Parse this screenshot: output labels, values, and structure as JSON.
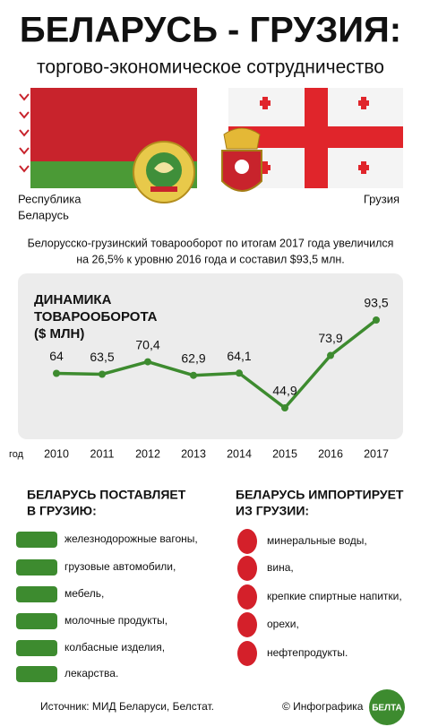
{
  "header": {
    "title": "БЕЛАРУСЬ - ГРУЗИЯ:",
    "subtitle": "торгово-экономическое сотрудничество"
  },
  "flags": {
    "left_label": [
      "Республика",
      "Беларусь"
    ],
    "right_label": "Грузия"
  },
  "summary": [
    "Белорусско-грузинский товарооборот по итогам 2017 года увеличился",
    "на 26,5% к уровню 2016 года и составил $93,5 млн."
  ],
  "chart_data": {
    "type": "line",
    "title": [
      "ДИНАМИКА",
      "ТОВАРООБОРОТА",
      "($ МЛН)"
    ],
    "x_label": "год",
    "categories": [
      "2010",
      "2011",
      "2012",
      "2013",
      "2014",
      "2015",
      "2016",
      "2017"
    ],
    "values": [
      64,
      63.5,
      70.4,
      62.9,
      64.1,
      44.9,
      73.9,
      93.5
    ],
    "value_labels": [
      "64",
      "63,5",
      "70,4",
      "62,9",
      "64,1",
      "44,9",
      "73,9",
      "93,5"
    ],
    "color": "#3d8b2f"
  },
  "exports": {
    "title": [
      "БЕЛАРУСЬ ПОСТАВЛЯЕТ",
      "В ГРУЗИЮ:"
    ],
    "items": [
      "железнодорожные вагоны,",
      "грузовые автомобили,",
      "мебель,",
      "молочные продукты,",
      "колбасные изделия,",
      "лекарства."
    ]
  },
  "imports": {
    "title": [
      "БЕЛАРУСЬ ИМПОРТИРУЕТ",
      "ИЗ ГРУЗИИ:"
    ],
    "items": [
      "минеральные воды,",
      "вина,",
      "крепкие спиртные напитки,",
      "орехи,",
      "нефтепродукты."
    ]
  },
  "footer": {
    "source": "Источник: МИД Беларуси, Белстат.",
    "credit": "© Инфографика",
    "logo": "БЕЛТА"
  }
}
